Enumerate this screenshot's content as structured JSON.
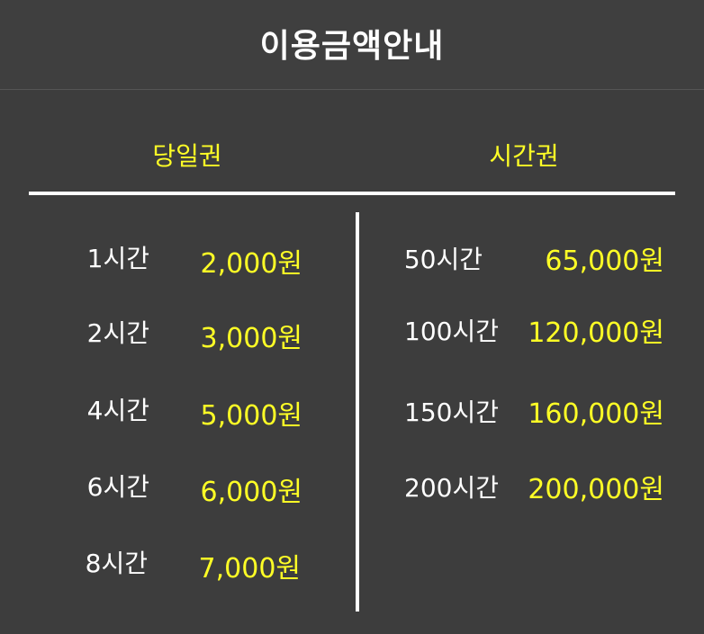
{
  "title": "이용금액안내",
  "columns": {
    "daily": {
      "heading": "당일권",
      "items": [
        {
          "duration": "1시간",
          "price": "2,000원"
        },
        {
          "duration": "2시간",
          "price": "3,000원"
        },
        {
          "duration": "4시간",
          "price": "5,000원"
        },
        {
          "duration": "6시간",
          "price": "6,000원"
        },
        {
          "duration": "8시간",
          "price": "7,000원"
        }
      ]
    },
    "hourly": {
      "heading": "시간권",
      "items": [
        {
          "duration": "50시간",
          "price": "65,000원"
        },
        {
          "duration": "100시간",
          "price": "120,000원"
        },
        {
          "duration": "150시간",
          "price": "160,000원"
        },
        {
          "duration": "200시간",
          "price": "200,000원"
        }
      ]
    }
  },
  "colors": {
    "background": "#3d3d3d",
    "accent": "#ffff26",
    "text": "#ffffff"
  }
}
